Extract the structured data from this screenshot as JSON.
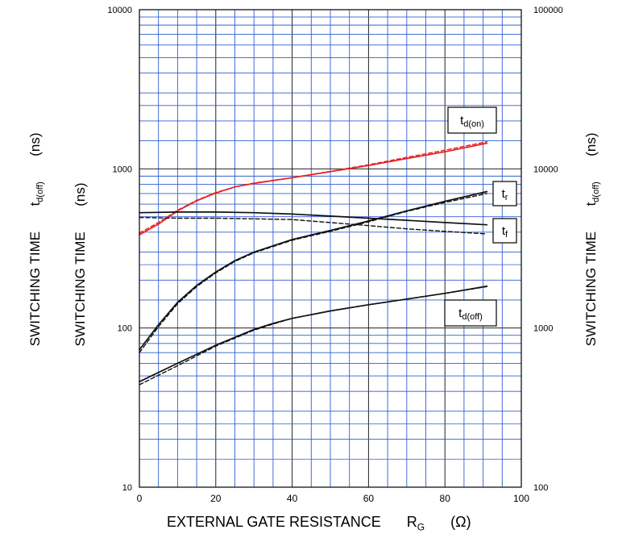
{
  "chart_data": {
    "type": "line",
    "x_axis": {
      "label": "EXTERNAL GATE RESISTANCE",
      "symbol": "R",
      "symbol_sub": "G",
      "unit": "(Ω)",
      "range": [
        0,
        100
      ],
      "ticks": [
        0,
        20,
        40,
        60,
        80,
        100
      ]
    },
    "y_axis_left": {
      "label": "SWITCHING TIME",
      "unit": "(ns)",
      "scale": "log",
      "range": [
        10,
        10000
      ],
      "ticks": [
        "10",
        "100",
        "1000",
        "10000"
      ]
    },
    "y_axis_right": {
      "label": "SWITCHING TIME",
      "symbol": "t",
      "symbol_sub": "d(off)",
      "unit": "(ns)",
      "scale": "log",
      "range": [
        100,
        100000
      ],
      "ticks": [
        "100",
        "1000",
        "10000",
        "100000"
      ]
    },
    "outer_left_label": {
      "label": "SWITCHING TIME",
      "symbol": "t",
      "symbol_sub": "d(off)",
      "unit": "(ns)"
    },
    "grid": true,
    "series": [
      {
        "name": "t_d(on)",
        "color": "#e82020",
        "style": "solid",
        "x": [
          0,
          5,
          10,
          15,
          20,
          25,
          30,
          40,
          50,
          60,
          70,
          80,
          91
        ],
        "y": [
          385,
          450,
          545,
          630,
          705,
          770,
          810,
          880,
          960,
          1050,
          1160,
          1280,
          1450
        ]
      },
      {
        "name": "t_d(on)",
        "color": "#e82020",
        "style": "dashed",
        "x": [
          0,
          5,
          10,
          15,
          20,
          25,
          30,
          40,
          50,
          60,
          70,
          80,
          91
        ],
        "y": [
          395,
          460,
          550,
          635,
          710,
          770,
          815,
          880,
          965,
          1060,
          1180,
          1310,
          1480
        ]
      },
      {
        "name": "t_r",
        "color": "#111111",
        "style": "solid",
        "x": [
          0,
          5,
          10,
          15,
          20,
          25,
          30,
          40,
          50,
          60,
          70,
          80,
          91
        ],
        "y": [
          73,
          105,
          145,
          185,
          225,
          265,
          300,
          360,
          410,
          470,
          545,
          625,
          720
        ]
      },
      {
        "name": "t_r",
        "color": "#111111",
        "style": "dashed",
        "x": [
          0,
          5,
          10,
          15,
          20,
          25,
          30,
          40,
          50,
          60,
          70,
          80,
          91
        ],
        "y": [
          70,
          102,
          142,
          182,
          222,
          262,
          297,
          356,
          405,
          465,
          540,
          615,
          700
        ]
      },
      {
        "name": "t_f",
        "color": "#111111",
        "style": "solid",
        "x": [
          0,
          10,
          20,
          30,
          40,
          50,
          60,
          70,
          80,
          91
        ],
        "y": [
          530,
          535,
          535,
          530,
          520,
          505,
          490,
          475,
          460,
          445
        ]
      },
      {
        "name": "t_f",
        "color": "#111111",
        "style": "dashed",
        "x": [
          0,
          10,
          20,
          30,
          40,
          50,
          60,
          70,
          80,
          91
        ],
        "y": [
          495,
          490,
          490,
          485,
          480,
          460,
          440,
          420,
          405,
          390
        ]
      },
      {
        "name": "t_d(off)",
        "color": "#111111",
        "style": "solid",
        "x": [
          0,
          10,
          20,
          30,
          35,
          40,
          50,
          60,
          70,
          80,
          91
        ],
        "y": [
          46,
          60,
          78,
          98,
          107,
          115,
          128,
          140,
          152,
          165,
          183
        ]
      },
      {
        "name": "t_d(off)",
        "color": "#111111",
        "style": "dashed",
        "x": [
          0,
          10,
          20,
          30,
          35,
          40,
          50,
          60,
          70,
          80,
          91
        ],
        "y": [
          44,
          58,
          77,
          97,
          106,
          115,
          128,
          140,
          152,
          165,
          182
        ]
      }
    ],
    "series_labels": [
      {
        "text": "t",
        "sub": "d(on)"
      },
      {
        "text": "t",
        "sub": "r"
      },
      {
        "text": "t",
        "sub": "f"
      },
      {
        "text": "t",
        "sub": "d(off)"
      }
    ]
  }
}
